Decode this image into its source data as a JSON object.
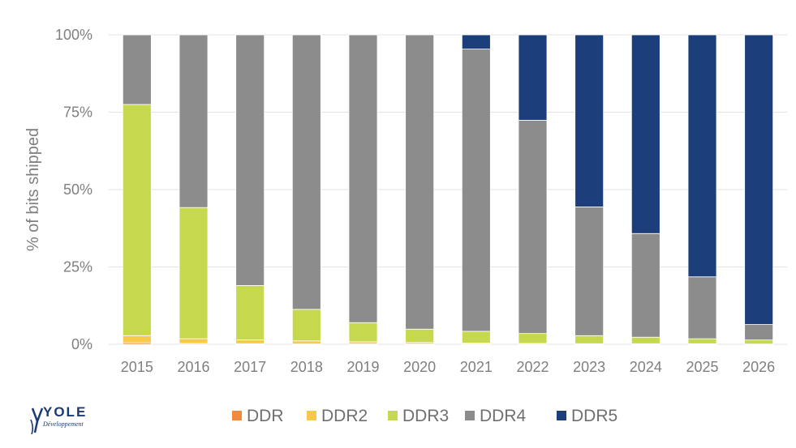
{
  "chart_data": {
    "type": "bar",
    "stacked": true,
    "title": "",
    "xlabel": "",
    "ylabel": "% of bits shipped",
    "ylim": [
      0,
      100
    ],
    "yticks": [
      "0%",
      "25%",
      "50%",
      "75%",
      "100%"
    ],
    "categories": [
      "2015",
      "2016",
      "2017",
      "2018",
      "2019",
      "2020",
      "2021",
      "2022",
      "2023",
      "2024",
      "2025",
      "2026"
    ],
    "series": [
      {
        "name": "DDR",
        "color": "#f08a3c",
        "values": [
          0.5,
          0.3,
          0.2,
          0.1,
          0.1,
          0.1,
          0.1,
          0,
          0,
          0,
          0,
          0
        ]
      },
      {
        "name": "DDR2",
        "color": "#f7c948",
        "values": [
          2.3,
          1.5,
          1.2,
          1.0,
          0.7,
          0.5,
          0.3,
          0.3,
          0.2,
          0.2,
          0.2,
          0.1
        ]
      },
      {
        "name": "DDR3",
        "color": "#c6d94e",
        "values": [
          74.7,
          42.4,
          17.6,
          10.2,
          6.2,
          4.3,
          3.8,
          3.2,
          2.6,
          2.1,
          1.6,
          1.3
        ]
      },
      {
        "name": "DDR4",
        "color": "#8c8c8c",
        "values": [
          22.5,
          55.8,
          81.0,
          88.7,
          93.0,
          95.1,
          91.2,
          68.9,
          41.6,
          33.5,
          20.0,
          5.0
        ]
      },
      {
        "name": "DDR5",
        "color": "#1c3f7c",
        "values": [
          0,
          0,
          0,
          0,
          0,
          0,
          4.6,
          27.6,
          55.6,
          64.2,
          78.2,
          93.6
        ]
      }
    ],
    "legend_position": "bottom"
  },
  "logo": {
    "word": "YOLE",
    "sub": "Développement"
  }
}
